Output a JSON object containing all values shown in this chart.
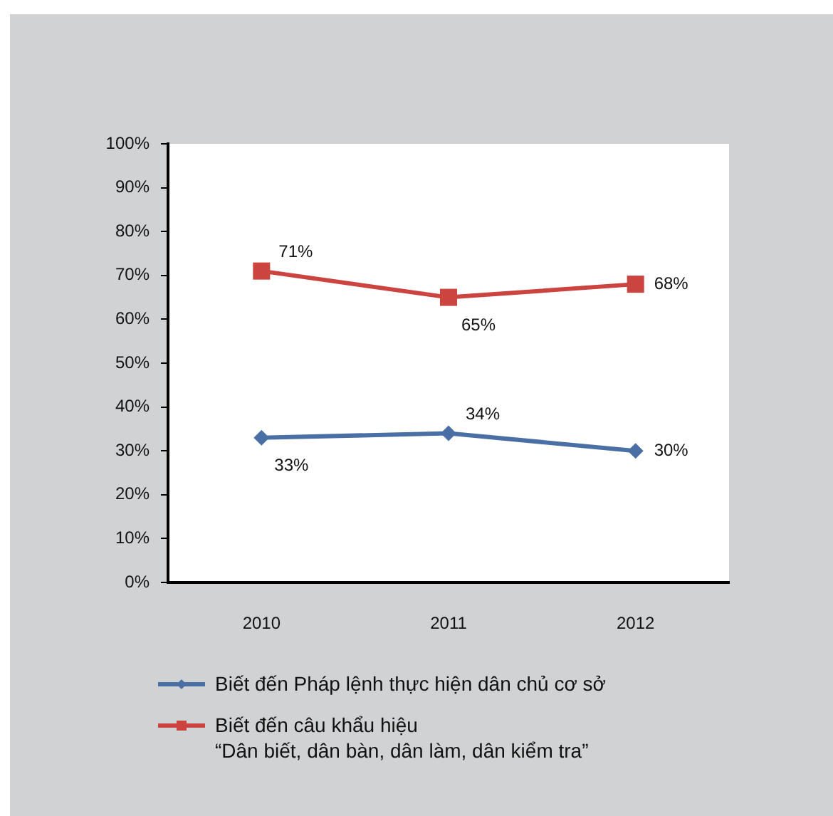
{
  "chart_data": {
    "type": "line",
    "categories": [
      "2010",
      "2011",
      "2012"
    ],
    "series": [
      {
        "name": "Biết đến Pháp lệnh thực hiện dân chủ cơ sở",
        "color": "#4a6fa5",
        "marker": "diamond",
        "values": [
          33,
          34,
          30
        ],
        "value_labels": [
          "33%",
          "34%",
          "30%"
        ]
      },
      {
        "name": "Biết đến câu khẩu hiệu\n“Dân biết, dân bàn, dân làm, dân kiểm tra”",
        "color": "#cc4440",
        "marker": "square",
        "values": [
          71,
          65,
          68
        ],
        "value_labels": [
          "71%",
          "65%",
          "68%"
        ]
      }
    ],
    "ylim": [
      0,
      100
    ],
    "yticks": [
      {
        "value": 0,
        "label": "0%"
      },
      {
        "value": 10,
        "label": "10%"
      },
      {
        "value": 20,
        "label": "20%"
      },
      {
        "value": 30,
        "label": "30%"
      },
      {
        "value": 40,
        "label": "40%"
      },
      {
        "value": 50,
        "label": "50%"
      },
      {
        "value": 60,
        "label": "60%"
      },
      {
        "value": 70,
        "label": "70%"
      },
      {
        "value": 80,
        "label": "80%"
      },
      {
        "value": 90,
        "label": "90%"
      },
      {
        "value": 100,
        "label": "100%"
      }
    ],
    "legend": "bottom"
  }
}
